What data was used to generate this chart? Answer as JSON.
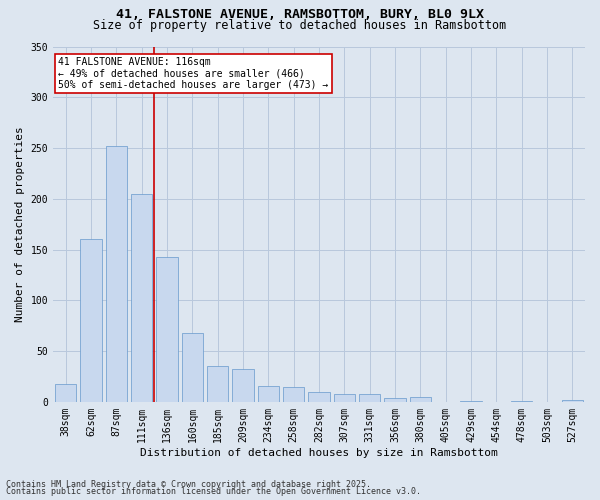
{
  "title1": "41, FALSTONE AVENUE, RAMSBOTTOM, BURY, BL0 9LX",
  "title2": "Size of property relative to detached houses in Ramsbottom",
  "xlabel": "Distribution of detached houses by size in Ramsbottom",
  "ylabel": "Number of detached properties",
  "categories": [
    "38sqm",
    "62sqm",
    "87sqm",
    "111sqm",
    "136sqm",
    "160sqm",
    "185sqm",
    "209sqm",
    "234sqm",
    "258sqm",
    "282sqm",
    "307sqm",
    "331sqm",
    "356sqm",
    "380sqm",
    "405sqm",
    "429sqm",
    "454sqm",
    "478sqm",
    "503sqm",
    "527sqm"
  ],
  "values": [
    18,
    160,
    252,
    205,
    143,
    68,
    35,
    32,
    16,
    15,
    10,
    8,
    8,
    4,
    5,
    0,
    1,
    0,
    1,
    0,
    2
  ],
  "bar_color": "#c8d8ee",
  "bar_edge_color": "#6699cc",
  "grid_color": "#b8c8dc",
  "bg_color": "#dde6f0",
  "vline_x_index": 3,
  "property_label": "41 FALSTONE AVENUE: 116sqm",
  "annotation_line1": "← 49% of detached houses are smaller (466)",
  "annotation_line2": "50% of semi-detached houses are larger (473) →",
  "vline_color": "#cc0000",
  "annotation_box_facecolor": "#ffffff",
  "annotation_border_color": "#cc0000",
  "ylim": [
    0,
    350
  ],
  "yticks": [
    0,
    50,
    100,
    150,
    200,
    250,
    300,
    350
  ],
  "footnote1": "Contains HM Land Registry data © Crown copyright and database right 2025.",
  "footnote2": "Contains public sector information licensed under the Open Government Licence v3.0.",
  "title_fontsize": 9.5,
  "subtitle_fontsize": 8.5,
  "axis_label_fontsize": 8,
  "tick_fontsize": 7,
  "annotation_fontsize": 7,
  "footnote_fontsize": 6
}
